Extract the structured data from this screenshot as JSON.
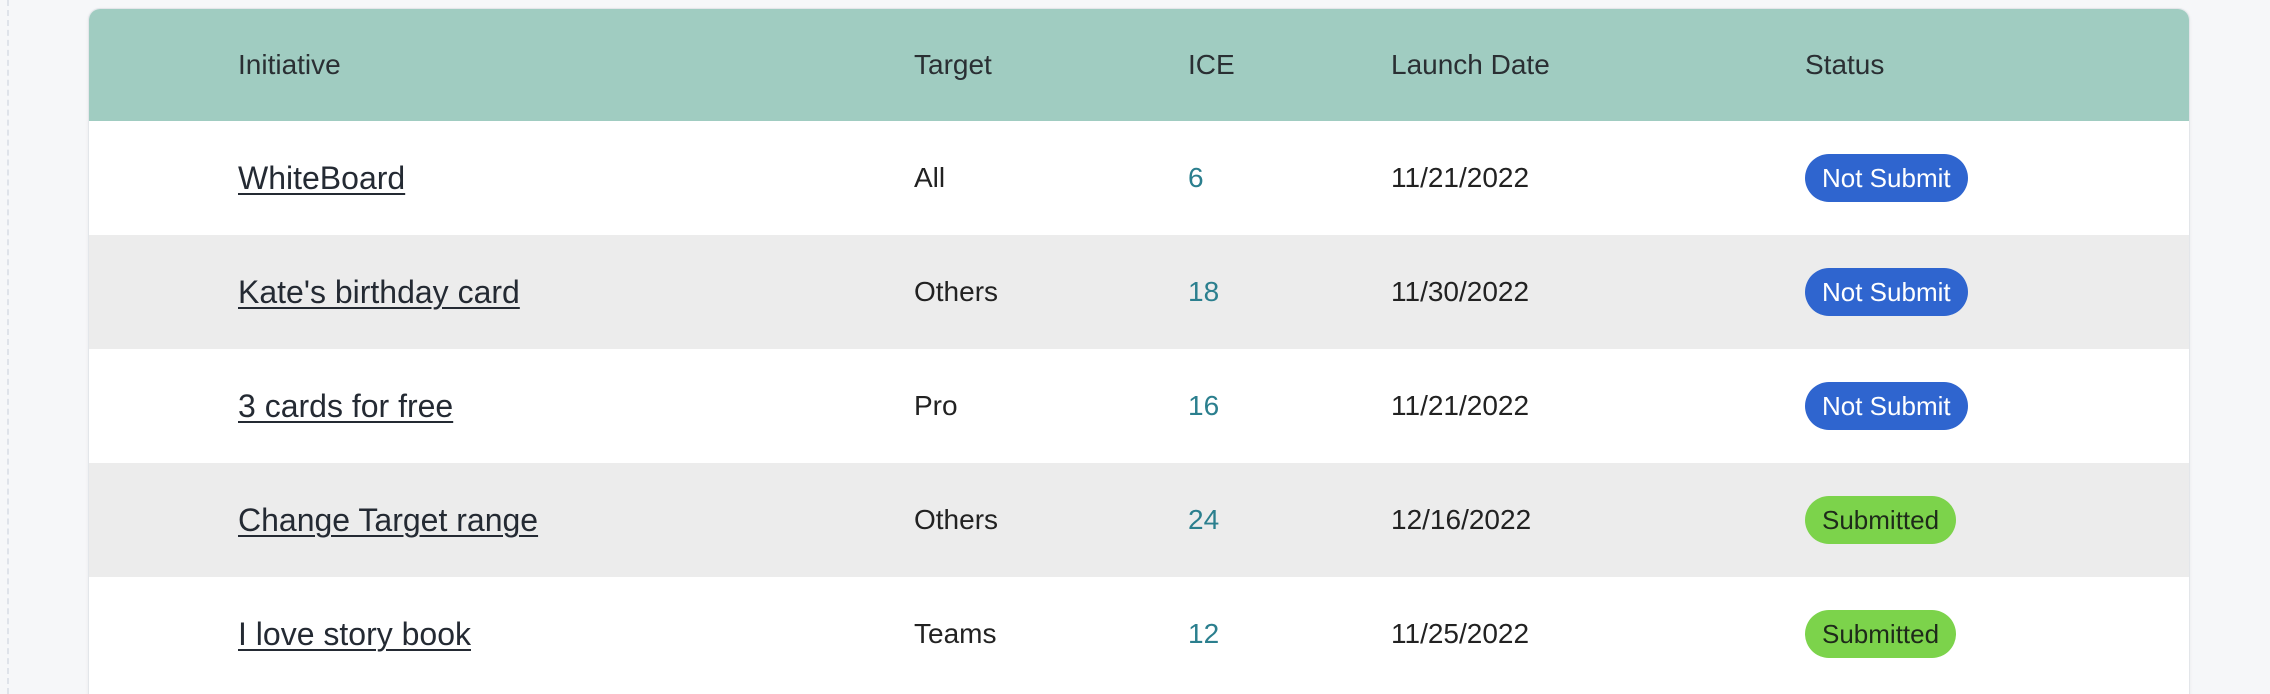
{
  "table": {
    "headers": {
      "initiative": "Initiative",
      "target": "Target",
      "ice": "ICE",
      "launch_date": "Launch Date",
      "status": "Status"
    },
    "rows": [
      {
        "initiative": "WhiteBoard",
        "target": "All",
        "ice": "6",
        "launch_date": "11/21/2022",
        "status": "Not Submit"
      },
      {
        "initiative": "Kate's birthday card",
        "target": "Others",
        "ice": "18",
        "launch_date": "11/30/2022",
        "status": "Not Submit"
      },
      {
        "initiative": "3 cards for free",
        "target": "Pro",
        "ice": "16",
        "launch_date": "11/21/2022",
        "status": "Not Submit"
      },
      {
        "initiative": "Change Target range",
        "target": "Others",
        "ice": "24",
        "launch_date": "12/16/2022",
        "status": "Submitted"
      },
      {
        "initiative": "I love story book",
        "target": "Teams",
        "ice": "12",
        "launch_date": "11/25/2022",
        "status": "Submitted"
      }
    ]
  },
  "colors": {
    "header_bg": "#a0ccc1",
    "not_submit_badge": "#2f65cf",
    "submitted_badge": "#7cd34b",
    "ice_text": "#2b7f8e",
    "alt_row_bg": "#ececec"
  }
}
